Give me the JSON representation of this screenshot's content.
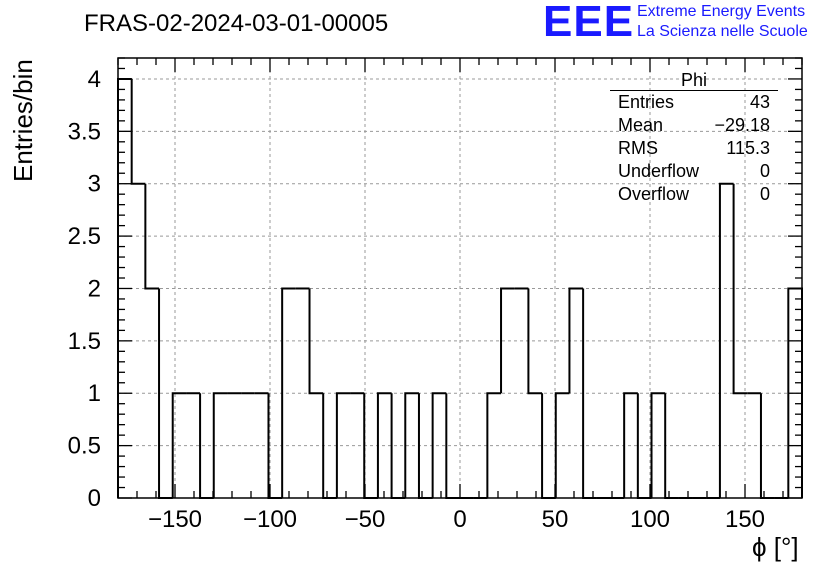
{
  "chart_data": {
    "type": "bar",
    "title": "FRAS-02-2024-03-01-00005",
    "xlabel": "ϕ [°]",
    "ylabel": "Entries/bin",
    "xlim": [
      -180,
      180
    ],
    "ylim": [
      0,
      4.2
    ],
    "bin_width": 7.2,
    "x_tick_labels": [
      "−150",
      "−100",
      "−50",
      "0",
      "50",
      "100",
      "150"
    ],
    "x_ticks": [
      -150,
      -100,
      -50,
      0,
      50,
      100,
      150
    ],
    "y_tick_labels": [
      "0",
      "0.5",
      "1",
      "1.5",
      "2",
      "2.5",
      "3",
      "3.5",
      "4"
    ],
    "y_ticks": [
      0,
      0.5,
      1,
      1.5,
      2,
      2.5,
      3,
      3.5,
      4
    ],
    "grid": true,
    "bin_low_edges": [
      -180,
      -172.8,
      -165.6,
      -158.4,
      -151.2,
      -144,
      -136.8,
      -129.6,
      -122.4,
      -115.2,
      -108,
      -100.8,
      -93.6,
      -86.4,
      -79.2,
      -72,
      -64.8,
      -57.6,
      -50.4,
      -43.2,
      -36,
      -28.8,
      -21.6,
      -14.4,
      -7.2,
      0,
      7.2,
      14.4,
      21.6,
      28.8,
      36,
      43.2,
      50.4,
      57.6,
      64.8,
      72,
      79.2,
      86.4,
      93.6,
      100.8,
      108,
      115.2,
      122.4,
      129.6,
      136.8,
      144,
      151.2,
      158.4,
      165.6,
      172.8
    ],
    "values": [
      4,
      3,
      2,
      0,
      1,
      1,
      0,
      1,
      1,
      1,
      1,
      0,
      2,
      2,
      1,
      0,
      1,
      1,
      0,
      1,
      0,
      1,
      0,
      1,
      0,
      0,
      0,
      1,
      2,
      2,
      1,
      0,
      1,
      2,
      0,
      0,
      0,
      1,
      0,
      1,
      0,
      0,
      0,
      0,
      3,
      1,
      1,
      0,
      0,
      2
    ],
    "stats_box": {
      "name": "Phi",
      "rows": [
        {
          "label": "Entries",
          "value": "43"
        },
        {
          "label": "Mean",
          "value": "−29.18"
        },
        {
          "label": "RMS",
          "value": "115.3"
        },
        {
          "label": "Underflow",
          "value": "0"
        },
        {
          "label": "Overflow",
          "value": "0"
        }
      ]
    },
    "colors": {
      "line": "#000000",
      "grid": "#999999",
      "logo": "#1a1aff"
    }
  },
  "logo": {
    "mark": "EEE",
    "line1": "Extreme Energy Events",
    "line2": "La Scienza nelle Scuole"
  }
}
